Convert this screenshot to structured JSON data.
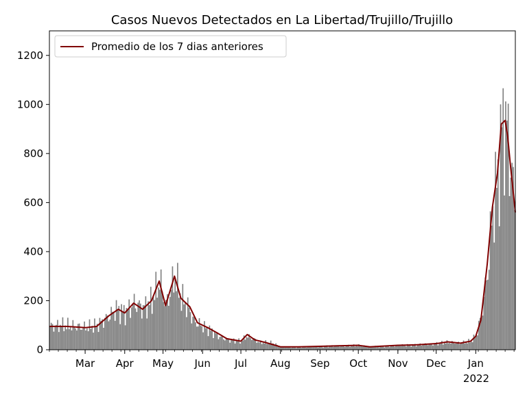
{
  "chart_data": {
    "type": "bar",
    "title": "Casos Nuevos Detectados en La Libertad/Trujillo/Trujillo",
    "xlabel": "",
    "ylabel": "",
    "ylim": [
      0,
      1300
    ],
    "x_range": [
      "2021-02-01",
      "2022-02-01"
    ],
    "y_ticks": [
      0,
      200,
      400,
      600,
      800,
      1000,
      1200
    ],
    "x_ticks": [
      {
        "date": "2021-03-01",
        "label": "Mar"
      },
      {
        "date": "2021-04-01",
        "label": "Apr"
      },
      {
        "date": "2021-05-01",
        "label": "May"
      },
      {
        "date": "2021-06-01",
        "label": "Jun"
      },
      {
        "date": "2021-07-01",
        "label": "Jul"
      },
      {
        "date": "2021-08-01",
        "label": "Aug"
      },
      {
        "date": "2021-09-01",
        "label": "Sep"
      },
      {
        "date": "2021-10-01",
        "label": "Oct"
      },
      {
        "date": "2021-11-01",
        "label": "Nov"
      },
      {
        "date": "2021-12-01",
        "label": "Dec"
      },
      {
        "date": "2022-01-01",
        "label": "Jan"
      }
    ],
    "year_label": "2022",
    "grid": false,
    "legend": {
      "position": "top-left",
      "entries": [
        "Promedio de los 7 dias anteriores"
      ]
    },
    "bar_color": "#808080",
    "line_color": "#800000",
    "daily_cases_anchors": [
      [
        "2021-02-01",
        95
      ],
      [
        "2021-02-10",
        100
      ],
      [
        "2021-02-20",
        95
      ],
      [
        "2021-03-01",
        90
      ],
      [
        "2021-03-10",
        100
      ],
      [
        "2021-03-20",
        140
      ],
      [
        "2021-03-25",
        165
      ],
      [
        "2021-04-01",
        150
      ],
      [
        "2021-04-08",
        190
      ],
      [
        "2021-04-15",
        170
      ],
      [
        "2021-04-22",
        200
      ],
      [
        "2021-04-28",
        280
      ],
      [
        "2021-05-03",
        180
      ],
      [
        "2021-05-10",
        300
      ],
      [
        "2021-05-15",
        210
      ],
      [
        "2021-05-20",
        175
      ],
      [
        "2021-05-25",
        115
      ],
      [
        "2021-06-01",
        95
      ],
      [
        "2021-06-08",
        75
      ],
      [
        "2021-06-15",
        50
      ],
      [
        "2021-06-22",
        40
      ],
      [
        "2021-07-01",
        35
      ],
      [
        "2021-07-05",
        55
      ],
      [
        "2021-07-10",
        45
      ],
      [
        "2021-07-15",
        30
      ],
      [
        "2021-07-25",
        28
      ],
      [
        "2021-08-01",
        12
      ],
      [
        "2021-08-10",
        10
      ],
      [
        "2021-08-20",
        12
      ],
      [
        "2021-09-01",
        14
      ],
      [
        "2021-09-15",
        15
      ],
      [
        "2021-10-01",
        17
      ],
      [
        "2021-10-10",
        12
      ],
      [
        "2021-10-20",
        13
      ],
      [
        "2021-11-01",
        18
      ],
      [
        "2021-11-15",
        20
      ],
      [
        "2021-12-01",
        25
      ],
      [
        "2021-12-10",
        30
      ],
      [
        "2021-12-20",
        27
      ],
      [
        "2021-12-28",
        35
      ],
      [
        "2022-01-01",
        60
      ],
      [
        "2022-01-05",
        140
      ],
      [
        "2022-01-10",
        320
      ],
      [
        "2022-01-14",
        580
      ],
      [
        "2022-01-18",
        700
      ],
      [
        "2022-01-21",
        900
      ],
      [
        "2022-01-24",
        935
      ],
      [
        "2022-01-26",
        850
      ],
      [
        "2022-01-28",
        750
      ],
      [
        "2022-01-30",
        650
      ],
      [
        "2022-02-01",
        570
      ]
    ],
    "rolling_average_anchors": [
      [
        "2021-02-01",
        95
      ],
      [
        "2021-02-15",
        95
      ],
      [
        "2021-03-01",
        90
      ],
      [
        "2021-03-10",
        95
      ],
      [
        "2021-03-20",
        140
      ],
      [
        "2021-03-27",
        165
      ],
      [
        "2021-04-01",
        150
      ],
      [
        "2021-04-08",
        190
      ],
      [
        "2021-04-15",
        165
      ],
      [
        "2021-04-22",
        200
      ],
      [
        "2021-04-28",
        280
      ],
      [
        "2021-05-03",
        180
      ],
      [
        "2021-05-10",
        300
      ],
      [
        "2021-05-15",
        210
      ],
      [
        "2021-05-22",
        175
      ],
      [
        "2021-05-28",
        110
      ],
      [
        "2021-06-05",
        90
      ],
      [
        "2021-06-12",
        70
      ],
      [
        "2021-06-20",
        45
      ],
      [
        "2021-07-01",
        35
      ],
      [
        "2021-07-06",
        62
      ],
      [
        "2021-07-12",
        40
      ],
      [
        "2021-07-20",
        30
      ],
      [
        "2021-08-01",
        12
      ],
      [
        "2021-08-15",
        12
      ],
      [
        "2021-09-01",
        14
      ],
      [
        "2021-09-15",
        16
      ],
      [
        "2021-10-01",
        18
      ],
      [
        "2021-10-10",
        12
      ],
      [
        "2021-11-01",
        18
      ],
      [
        "2021-11-15",
        20
      ],
      [
        "2021-12-01",
        25
      ],
      [
        "2021-12-10",
        32
      ],
      [
        "2021-12-20",
        27
      ],
      [
        "2021-12-28",
        35
      ],
      [
        "2022-01-01",
        55
      ],
      [
        "2022-01-05",
        120
      ],
      [
        "2022-01-10",
        350
      ],
      [
        "2022-01-14",
        580
      ],
      [
        "2022-01-18",
        720
      ],
      [
        "2022-01-21",
        920
      ],
      [
        "2022-01-24",
        935
      ],
      [
        "2022-01-26",
        870
      ],
      [
        "2022-01-28",
        760
      ],
      [
        "2022-01-30",
        660
      ],
      [
        "2022-02-01",
        560
      ]
    ]
  }
}
